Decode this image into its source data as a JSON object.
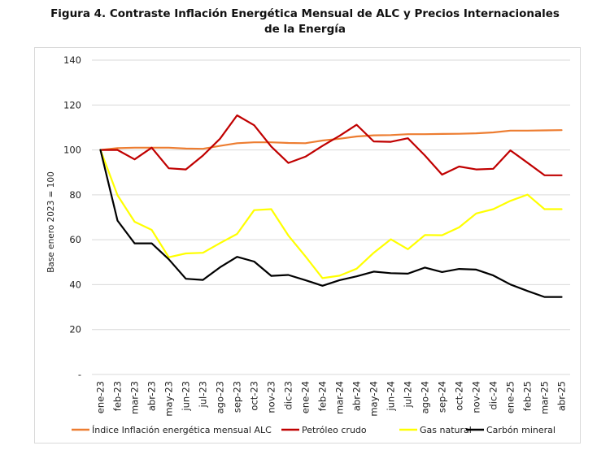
{
  "chart_data": {
    "type": "line",
    "title_line1": "Figura 4. Contraste Inflación Energética Mensual de ALC y Precios Internacionales",
    "title_line2": "de la Energía",
    "ylabel": "Base enero 2023 = 100",
    "ylim": [
      0,
      140
    ],
    "yticks": [
      "-",
      "20",
      "40",
      "60",
      "80",
      "100",
      "120",
      "140"
    ],
    "grid": true,
    "legend_position": "bottom",
    "categories": [
      "ene-23",
      "feb-23",
      "mar-23",
      "abr-23",
      "may-23",
      "jun-23",
      "jul-23",
      "ago-23",
      "sep-23",
      "oct-23",
      "nov-23",
      "dic-23",
      "ene-24",
      "feb-24",
      "mar-24",
      "abr-24",
      "may-24",
      "jun-24",
      "jul-24",
      "ago-24",
      "sep-24",
      "oct-24",
      "nov-24",
      "dic-24",
      "ene-25",
      "feb-25",
      "mar-25",
      "abr-25"
    ],
    "series": [
      {
        "name": "Índice Inflación energética mensual ALC",
        "color": "#ed7d31",
        "values": [
          100,
          100.8,
          101,
          101,
          101,
          100.6,
          100.5,
          101.8,
          103,
          103.4,
          103.4,
          103.1,
          103,
          104.2,
          105,
          106,
          106.5,
          106.6,
          107,
          107,
          107.1,
          107.2,
          107.4,
          107.8,
          108.6,
          108.6,
          108.7,
          108.8
        ]
      },
      {
        "name": "Petróleo crudo",
        "color": "#c00000",
        "values": [
          100,
          100,
          95.8,
          101,
          91.8,
          91.3,
          97.5,
          105,
          115.4,
          111,
          101.5,
          94.2,
          97,
          101.8,
          106.3,
          111.2,
          103.8,
          103.6,
          105.2,
          97.5,
          89,
          92.6,
          91.3,
          91.6,
          99.8,
          94.3,
          88.7,
          88.7
        ]
      },
      {
        "name": "Gas natural",
        "color": "#ffff00",
        "values": [
          100,
          79.8,
          68,
          64.4,
          52.2,
          53.9,
          54.2,
          58.5,
          62.6,
          73.2,
          73.6,
          61.9,
          52.6,
          42.9,
          44,
          47.1,
          54.2,
          60.2,
          55.8,
          62.1,
          62,
          65.5,
          71.7,
          73.6,
          77.3,
          80.1,
          73.6,
          73.6
        ]
      },
      {
        "name": "Carbón mineral",
        "color": "#000000",
        "values": [
          100,
          68.5,
          58.4,
          58.4,
          51.3,
          42.6,
          42.1,
          47.7,
          52.4,
          50.3,
          43.9,
          44.3,
          42,
          39.5,
          42,
          43.7,
          45.8,
          45.1,
          44.9,
          47.6,
          45.6,
          47,
          46.7,
          44.1,
          40.1,
          37.2,
          34.5,
          34.5
        ]
      }
    ]
  }
}
